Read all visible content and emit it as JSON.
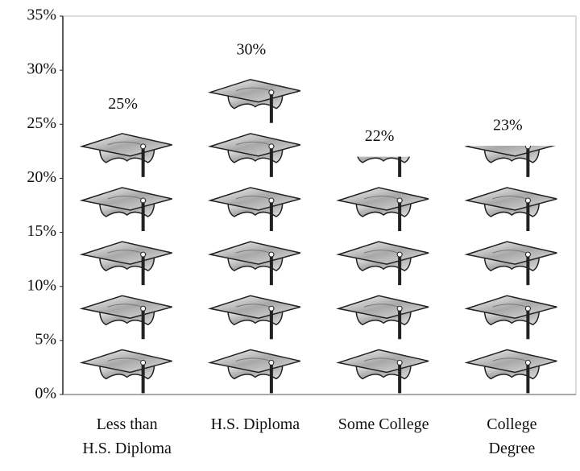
{
  "chart_data": {
    "type": "bar",
    "categories": [
      "Less than\nH.S. Diploma",
      "H.S. Diploma",
      "Some College",
      "College\nDegree"
    ],
    "values": [
      25,
      30,
      22,
      23
    ],
    "value_labels": [
      "25%",
      "30%",
      "22%",
      "23%"
    ],
    "ylim": [
      0,
      35
    ],
    "yticks": [
      {
        "value": 0,
        "label": "0%"
      },
      {
        "value": 5,
        "label": "5%"
      },
      {
        "value": 10,
        "label": "10%"
      },
      {
        "value": 15,
        "label": "15%"
      },
      {
        "value": 20,
        "label": "20%"
      },
      {
        "value": 25,
        "label": "25%"
      },
      {
        "value": 30,
        "label": "30%"
      },
      {
        "value": 35,
        "label": "35%"
      }
    ]
  }
}
